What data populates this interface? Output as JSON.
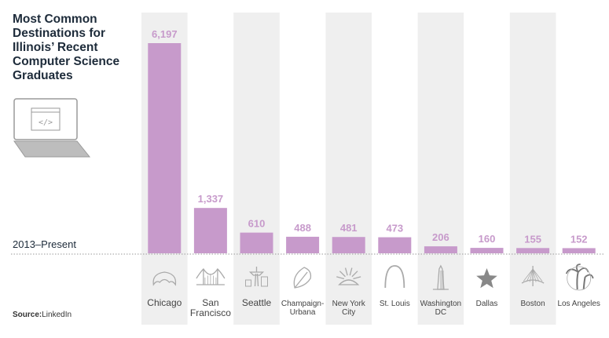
{
  "title": "Most Common Destinations for Illinois’ Recent Computer Science Graduates",
  "period": "2013–Present",
  "source": {
    "prefix": "Source:",
    "name": "LinkedIn"
  },
  "colors": {
    "bar": "#c79acb",
    "band": "#efefef",
    "label": "#c79acb",
    "icon": "#aaaaaa"
  },
  "chart_data": {
    "type": "bar",
    "title": "Most Common Destinations for Illinois’ Recent Computer Science Graduates",
    "xlabel": "",
    "ylabel": "",
    "categories": [
      "Chicago",
      "San Francisco",
      "Seattle",
      "Champaign-Urbana",
      "New York City",
      "St. Louis",
      "Washington DC",
      "Dallas",
      "Boston",
      "Los Angeles"
    ],
    "values": [
      6197,
      1337,
      610,
      488,
      481,
      473,
      206,
      160,
      155,
      152
    ],
    "value_labels": [
      "6,197",
      "1,337",
      "610",
      "488",
      "481",
      "473",
      "206",
      "160",
      "155",
      "152"
    ],
    "ylim": [
      0,
      6197
    ],
    "grid": false,
    "legend": "none"
  },
  "cities": [
    {
      "lines": [
        "Chicago"
      ],
      "icon": "bean-icon",
      "small": false
    },
    {
      "lines": [
        "San",
        "Francisco"
      ],
      "icon": "golden-gate-icon",
      "small": false
    },
    {
      "lines": [
        "Seattle"
      ],
      "icon": "space-needle-icon",
      "small": false
    },
    {
      "lines": [
        "Champaign-",
        "Urbana"
      ],
      "icon": "oak-leaf-icon",
      "small": true
    },
    {
      "lines": [
        "New York",
        "City"
      ],
      "icon": "liberty-crown-icon",
      "small": true
    },
    {
      "lines": [
        "St. Louis"
      ],
      "icon": "gateway-arch-icon",
      "small": true
    },
    {
      "lines": [
        "Washington",
        "DC"
      ],
      "icon": "monument-icon",
      "small": true
    },
    {
      "lines": [
        "Dallas"
      ],
      "icon": "star-icon",
      "small": true
    },
    {
      "lines": [
        "Boston"
      ],
      "icon": "zakim-bridge-icon",
      "small": true
    },
    {
      "lines": [
        "Los Angeles"
      ],
      "icon": "palm-trees-icon",
      "small": true
    }
  ]
}
